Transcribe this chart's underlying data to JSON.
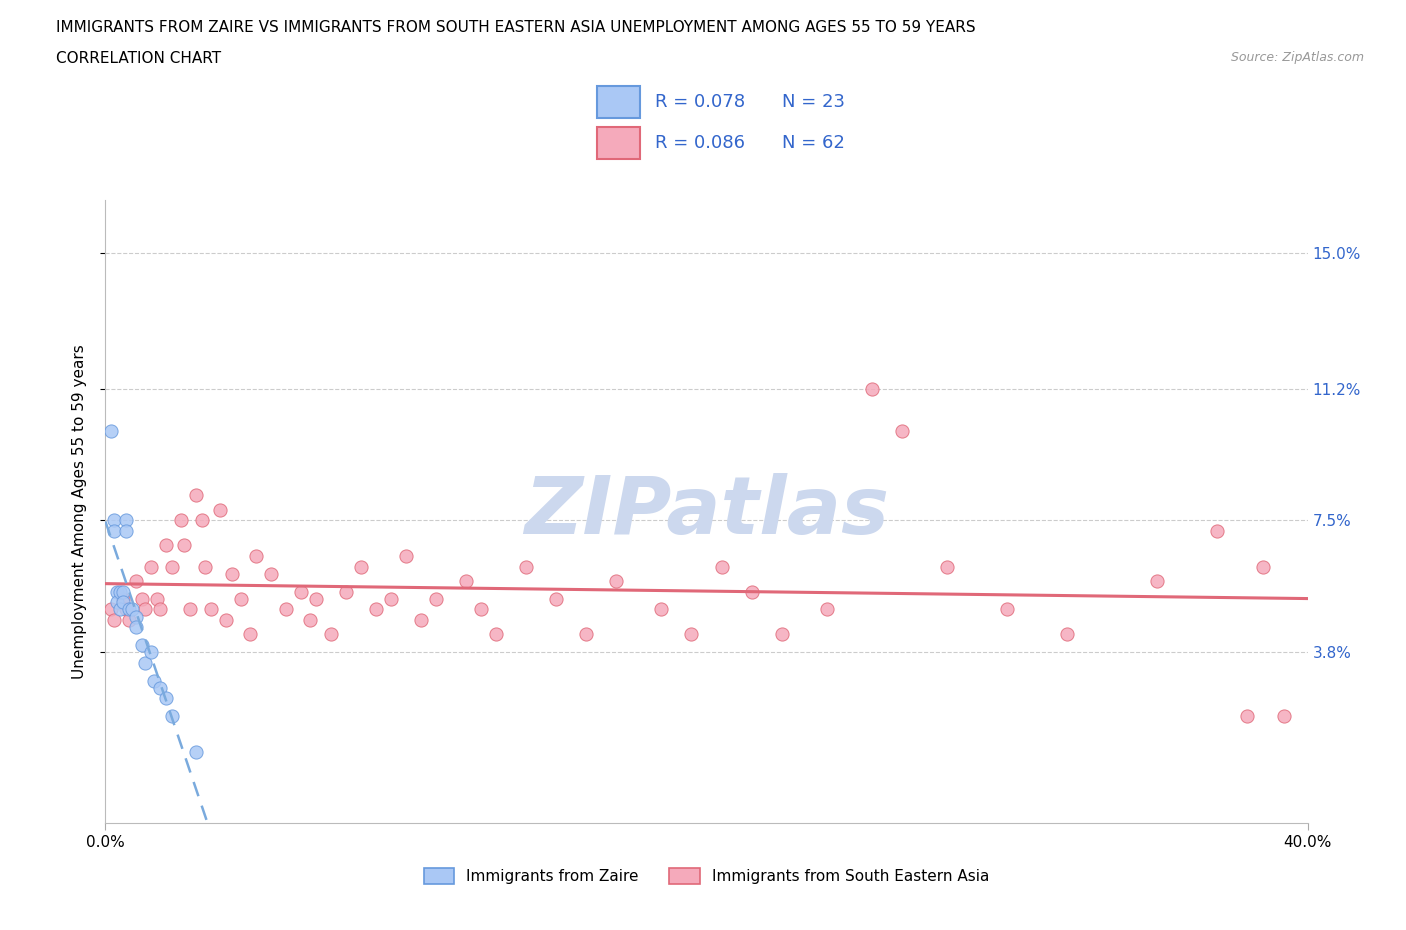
{
  "title_line1": "IMMIGRANTS FROM ZAIRE VS IMMIGRANTS FROM SOUTH EASTERN ASIA UNEMPLOYMENT AMONG AGES 55 TO 59 YEARS",
  "title_line2": "CORRELATION CHART",
  "source_text": "Source: ZipAtlas.com",
  "ylabel": "Unemployment Among Ages 55 to 59 years",
  "xlim": [
    0.0,
    0.4
  ],
  "ylim": [
    -0.01,
    0.165
  ],
  "ytick_labels": [
    "3.8%",
    "7.5%",
    "11.2%",
    "15.0%"
  ],
  "ytick_values": [
    0.038,
    0.075,
    0.112,
    0.15
  ],
  "legend_label1": "Immigrants from Zaire",
  "legend_label2": "Immigrants from South Eastern Asia",
  "r1": 0.078,
  "n1": 23,
  "r2": 0.086,
  "n2": 62,
  "color_zaire_fill": "#aac8f5",
  "color_zaire_edge": "#6699dd",
  "color_sea_fill": "#f5aabb",
  "color_sea_edge": "#e06878",
  "color_zaire_line": "#7aaadd",
  "color_sea_line": "#e06878",
  "color_text_blue": "#3366cc",
  "watermark_color": "#ccd8ee",
  "grid_color": "#cccccc",
  "zaire_x": [
    0.002,
    0.003,
    0.003,
    0.004,
    0.004,
    0.005,
    0.005,
    0.006,
    0.006,
    0.007,
    0.007,
    0.008,
    0.009,
    0.01,
    0.01,
    0.012,
    0.013,
    0.015,
    0.016,
    0.018,
    0.02,
    0.022,
    0.03
  ],
  "zaire_y": [
    0.1,
    0.075,
    0.072,
    0.055,
    0.052,
    0.055,
    0.05,
    0.055,
    0.052,
    0.075,
    0.072,
    0.05,
    0.05,
    0.048,
    0.045,
    0.04,
    0.035,
    0.038,
    0.03,
    0.028,
    0.025,
    0.02,
    0.01
  ],
  "sea_x": [
    0.002,
    0.003,
    0.006,
    0.007,
    0.008,
    0.01,
    0.012,
    0.013,
    0.015,
    0.017,
    0.018,
    0.02,
    0.022,
    0.025,
    0.026,
    0.028,
    0.03,
    0.032,
    0.033,
    0.035,
    0.038,
    0.04,
    0.042,
    0.045,
    0.048,
    0.05,
    0.055,
    0.06,
    0.065,
    0.068,
    0.07,
    0.075,
    0.08,
    0.085,
    0.09,
    0.095,
    0.1,
    0.105,
    0.11,
    0.12,
    0.125,
    0.13,
    0.14,
    0.15,
    0.16,
    0.17,
    0.185,
    0.195,
    0.205,
    0.215,
    0.225,
    0.24,
    0.255,
    0.265,
    0.28,
    0.3,
    0.32,
    0.35,
    0.37,
    0.38,
    0.385,
    0.392
  ],
  "sea_y": [
    0.05,
    0.047,
    0.053,
    0.05,
    0.047,
    0.058,
    0.053,
    0.05,
    0.062,
    0.053,
    0.05,
    0.068,
    0.062,
    0.075,
    0.068,
    0.05,
    0.082,
    0.075,
    0.062,
    0.05,
    0.078,
    0.047,
    0.06,
    0.053,
    0.043,
    0.065,
    0.06,
    0.05,
    0.055,
    0.047,
    0.053,
    0.043,
    0.055,
    0.062,
    0.05,
    0.053,
    0.065,
    0.047,
    0.053,
    0.058,
    0.05,
    0.043,
    0.062,
    0.053,
    0.043,
    0.058,
    0.05,
    0.043,
    0.062,
    0.055,
    0.043,
    0.05,
    0.112,
    0.1,
    0.062,
    0.05,
    0.043,
    0.058,
    0.072,
    0.02,
    0.062,
    0.02
  ]
}
